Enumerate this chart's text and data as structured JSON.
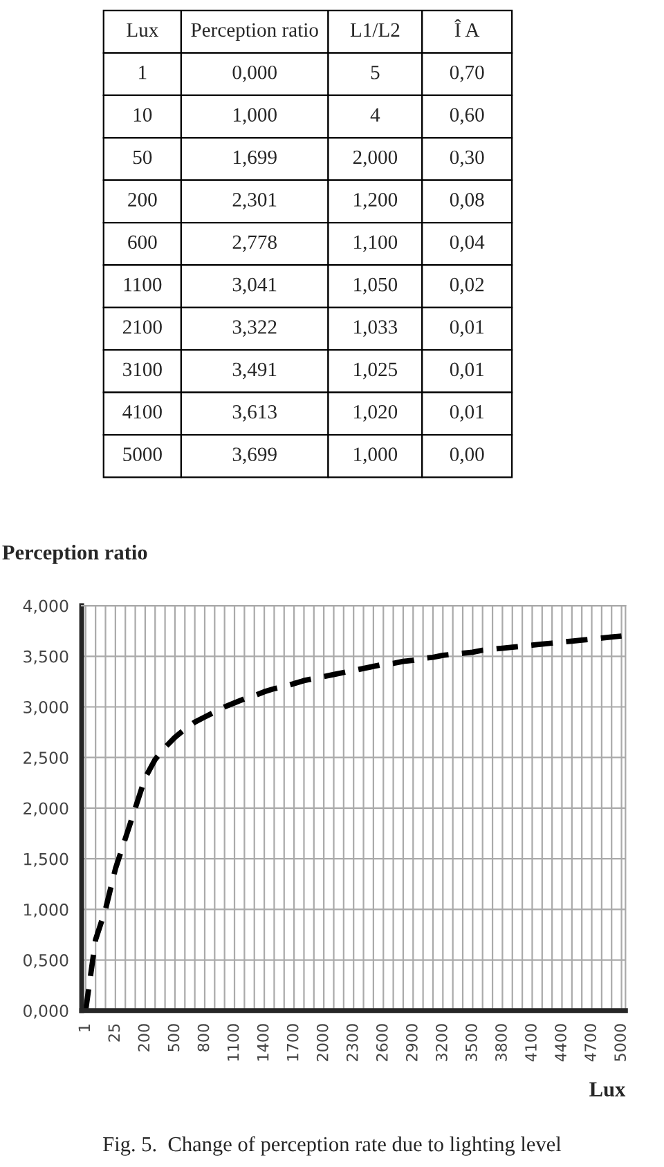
{
  "chart_data": [
    {
      "type": "other",
      "annotations": [
        "Lux",
        "Perception ratio",
        "L1/L2",
        "Î A",
        "1",
        "0,000",
        "5",
        "0,70",
        "10",
        "1,000",
        "4",
        "0,60",
        "50",
        "1,699",
        "2,000",
        "0,30",
        "200",
        "2,301",
        "1,200",
        "0,08",
        "600",
        "2,778",
        "1,100",
        "0,04",
        "1100",
        "3,041",
        "1,050",
        "0,02",
        "2100",
        "3,322",
        "1,033",
        "0,01",
        "3100",
        "3,491",
        "1,025",
        "0,01",
        "4100",
        "3,613",
        "1,020",
        "0,01",
        "5000",
        "3,699",
        "1,000",
        "0,00"
      ]
    },
    {
      "type": "line",
      "ylabel": "Perception ratio",
      "xlabel": "Lux",
      "annotations": [
        "Fig. 5.  Change of perception rate due to lighting level"
      ],
      "categories": [
        "1",
        null,
        null,
        "25",
        null,
        null,
        "200",
        null,
        null,
        "500",
        null,
        null,
        "800",
        null,
        null,
        "1100",
        null,
        null,
        "1400",
        null,
        null,
        "1700",
        null,
        null,
        "2000",
        null,
        null,
        "2300",
        null,
        null,
        "2600",
        null,
        null,
        "2900",
        null,
        null,
        "3200",
        null,
        null,
        "3500",
        null,
        null,
        "3800",
        null,
        null,
        "4100",
        null,
        null,
        "4400",
        null,
        null,
        "4700",
        null,
        null,
        "5000"
      ],
      "series": [
        {
          "color": "#000000",
          "values": [
            0,
            0.7,
            1.0,
            1.4,
            1.7,
            2.0,
            2.3,
            2.48,
            2.6,
            2.7,
            2.78,
            2.85,
            2.9,
            2.95,
            3.0,
            3.04,
            3.08,
            3.11,
            3.15,
            3.18,
            3.2,
            3.23,
            3.26,
            3.28,
            3.3,
            3.32,
            3.34,
            3.36,
            3.38,
            3.4,
            3.42,
            3.43,
            3.45,
            3.46,
            3.48,
            3.49,
            3.51,
            3.52,
            3.53,
            3.54,
            3.56,
            3.57,
            3.58,
            3.59,
            3.6,
            3.61,
            3.62,
            3.63,
            3.64,
            3.65,
            3.66,
            3.67,
            3.68,
            3.69,
            3.7
          ]
        }
      ],
      "ylim": [
        0,
        4
      ],
      "yticks": [
        {
          "value": 0,
          "label": "0,000"
        },
        {
          "value": 0.5,
          "label": "0,500"
        },
        {
          "value": 1,
          "label": "1,000"
        },
        {
          "value": 1.5,
          "label": "1,500"
        },
        {
          "value": 2,
          "label": "2,000"
        },
        {
          "value": 2.5,
          "label": "2,500"
        },
        {
          "value": 3,
          "label": "3,000"
        },
        {
          "value": 3.5,
          "label": "3,500"
        },
        {
          "value": 4,
          "label": "4,000"
        }
      ],
      "grid": true,
      "line_style": "dashed",
      "marker": "none",
      "legend": false
    }
  ]
}
